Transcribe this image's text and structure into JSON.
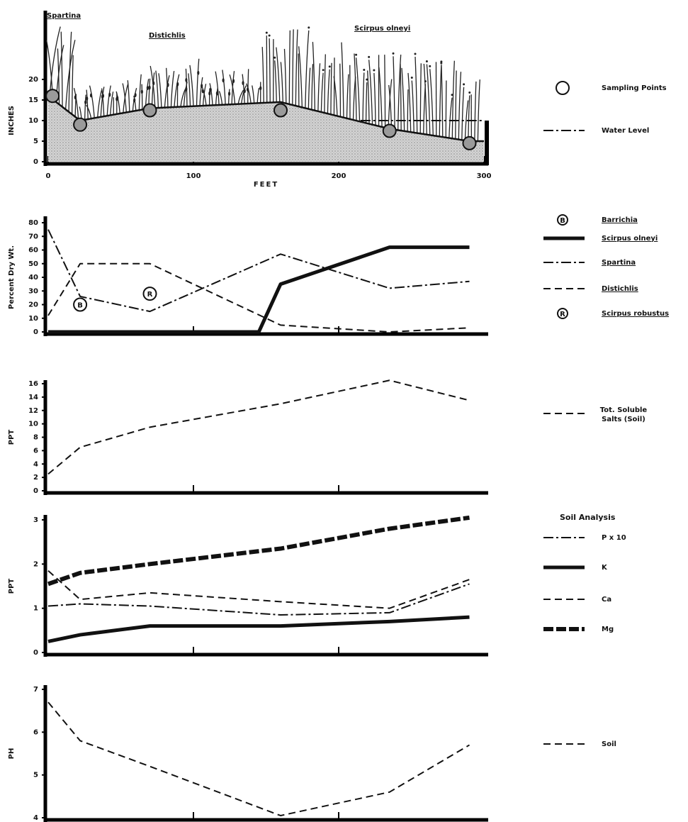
{
  "chart_data": [
    {
      "type": "profile",
      "ylabel": "INCHES",
      "xlabel": "FEET",
      "xlim": [
        0,
        300
      ],
      "xticks": [
        0,
        100,
        200,
        300
      ],
      "ylim": [
        0,
        20
      ],
      "yticks": [
        0,
        5,
        10,
        15,
        20
      ],
      "annotations": [
        "Spartina",
        "Distichlis",
        "Scirpus olneyi"
      ],
      "series": [
        {
          "style": "surface",
          "x": [
            0,
            22,
            70,
            160,
            235,
            290,
            300
          ],
          "values": [
            16,
            10,
            13,
            14.5,
            8,
            5,
            5
          ]
        },
        {
          "name": "Sampling Points",
          "style": "marker",
          "x": [
            3,
            22,
            70,
            160,
            235,
            290
          ],
          "values": [
            16,
            9,
            12.5,
            12.5,
            7.5,
            4.5
          ]
        },
        {
          "name": "Water Level",
          "style": "dashdot",
          "x": [
            215,
            300
          ],
          "values": [
            10,
            10
          ]
        }
      ]
    },
    {
      "type": "line",
      "ylabel": "Percent Dry Wt.",
      "xlim": [
        0,
        300
      ],
      "xticks": [
        100,
        200
      ],
      "ylim": [
        0,
        80
      ],
      "yticks": [
        0,
        10,
        20,
        30,
        40,
        50,
        60,
        70,
        80
      ],
      "x": [
        0,
        22,
        70,
        160,
        235,
        290
      ],
      "series": [
        {
          "name": "Barrichia",
          "style": "marker",
          "marker_label": "B",
          "x": [
            22
          ],
          "values": [
            20
          ]
        },
        {
          "name": "Scirpus olneyi",
          "style": "solid-thick",
          "x": [
            0,
            70,
            145,
            160,
            235,
            290
          ],
          "values": [
            0,
            0,
            0,
            35,
            62,
            62
          ]
        },
        {
          "name": "Spartina",
          "style": "dashdot",
          "values": [
            75,
            26,
            15,
            57,
            32,
            37
          ]
        },
        {
          "name": "Distichlis",
          "style": "dashed",
          "values": [
            12,
            50,
            50,
            5,
            0,
            3
          ]
        },
        {
          "name": "Scirpus robustus",
          "style": "marker",
          "marker_label": "R",
          "x": [
            70
          ],
          "values": [
            28
          ]
        }
      ]
    },
    {
      "type": "line",
      "ylabel": "PPT",
      "xlim": [
        0,
        300
      ],
      "xticks": [
        100,
        200
      ],
      "ylim": [
        0,
        16
      ],
      "yticks": [
        0,
        2,
        4,
        6,
        8,
        10,
        12,
        14,
        16
      ],
      "x": [
        0,
        22,
        70,
        160,
        235,
        290
      ],
      "series": [
        {
          "name": "Tot. Soluble Salts (Soil)",
          "style": "dashed",
          "values": [
            2.5,
            6.5,
            9.5,
            13,
            16.5,
            13.5
          ]
        }
      ]
    },
    {
      "type": "line",
      "ylabel": "PPT",
      "legend_title": "Soil Analysis",
      "xlim": [
        0,
        300
      ],
      "xticks": [
        100,
        200
      ],
      "ylim": [
        0,
        3
      ],
      "yticks": [
        0,
        1,
        2,
        3
      ],
      "x": [
        0,
        22,
        70,
        160,
        235,
        290
      ],
      "series": [
        {
          "name": "P x 10",
          "style": "dashdot",
          "values": [
            1.05,
            1.1,
            1.05,
            0.85,
            0.9,
            1.55
          ]
        },
        {
          "name": "K",
          "style": "solid-thick",
          "values": [
            0.25,
            0.4,
            0.6,
            0.6,
            0.7,
            0.8
          ]
        },
        {
          "name": "Ca",
          "style": "dashed",
          "values": [
            1.85,
            1.2,
            1.35,
            1.15,
            1.0,
            1.65
          ]
        },
        {
          "name": "Mg",
          "style": "dashed-thick",
          "values": [
            1.55,
            1.8,
            2.0,
            2.35,
            2.8,
            3.05
          ]
        }
      ]
    },
    {
      "type": "line",
      "ylabel": "PH",
      "xlim": [
        0,
        300
      ],
      "xticks": [
        100,
        200
      ],
      "ylim": [
        4,
        7
      ],
      "yticks": [
        4,
        5,
        6,
        7
      ],
      "x": [
        0,
        22,
        70,
        160,
        235,
        290
      ],
      "series": [
        {
          "name": "Soil",
          "style": "dashed",
          "values": [
            6.7,
            5.8,
            5.2,
            4.05,
            4.6,
            5.7
          ]
        }
      ]
    }
  ]
}
